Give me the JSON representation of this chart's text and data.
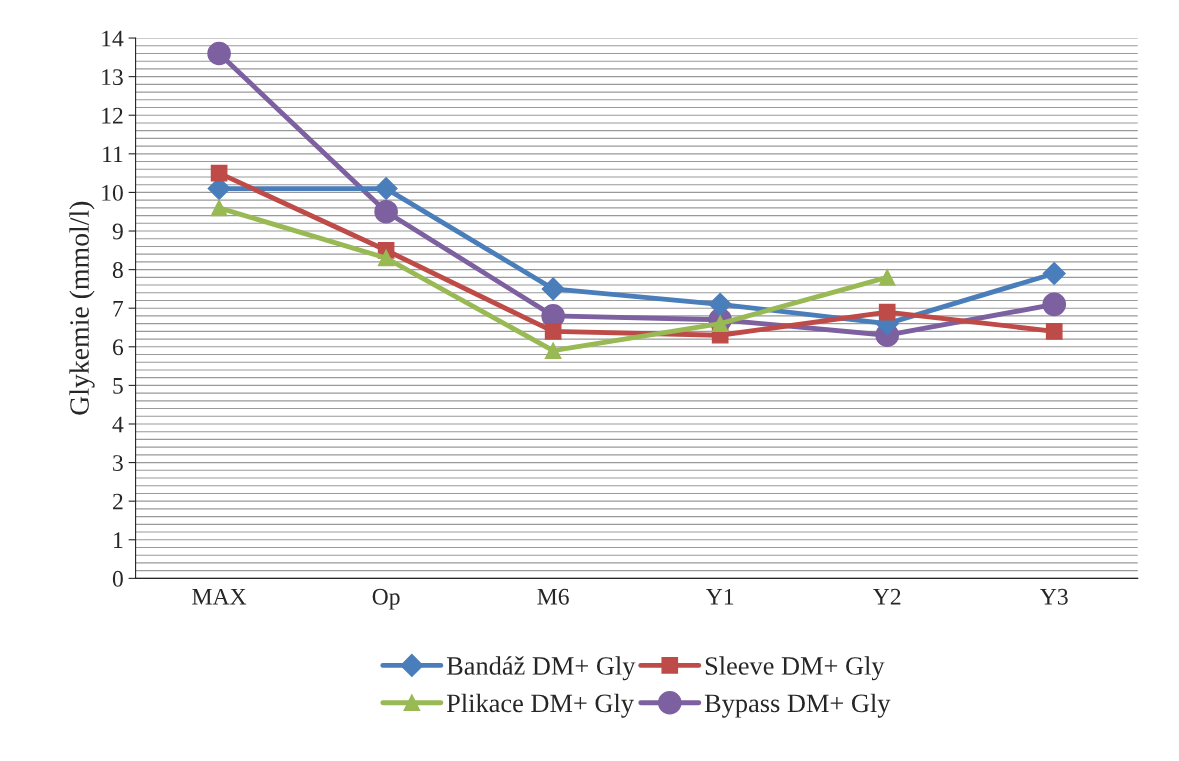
{
  "chart_data": {
    "type": "line",
    "ylabel": "Glykemie (mmol/l)",
    "categories": [
      "MAX",
      "Op",
      "M6",
      "Y1",
      "Y2",
      "Y3"
    ],
    "series": [
      {
        "name": "Bandáž DM+ Gly",
        "color": "#4a7ebb",
        "marker": "diamond",
        "values": [
          10.1,
          10.1,
          7.5,
          7.1,
          6.6,
          7.9
        ]
      },
      {
        "name": "Sleeve DM+ Gly",
        "color": "#be4b48",
        "marker": "square",
        "values": [
          10.5,
          8.5,
          6.4,
          6.3,
          6.9,
          6.4
        ]
      },
      {
        "name": "Plikace DM+ Gly",
        "color": "#98b954",
        "marker": "triangle",
        "values": [
          9.6,
          8.3,
          5.9,
          6.6,
          7.8,
          null
        ]
      },
      {
        "name": "Bypass DM+ Gly",
        "color": "#7d60a0",
        "marker": "circle",
        "values": [
          13.6,
          9.5,
          6.8,
          6.7,
          6.3,
          7.1
        ]
      }
    ],
    "ylim": [
      0,
      14
    ],
    "yticks": [
      0,
      1,
      2,
      3,
      4,
      5,
      6,
      7,
      8,
      9,
      10,
      11,
      12,
      13,
      14
    ],
    "grid": "y",
    "legend": "bottom",
    "line_style": "solid"
  }
}
